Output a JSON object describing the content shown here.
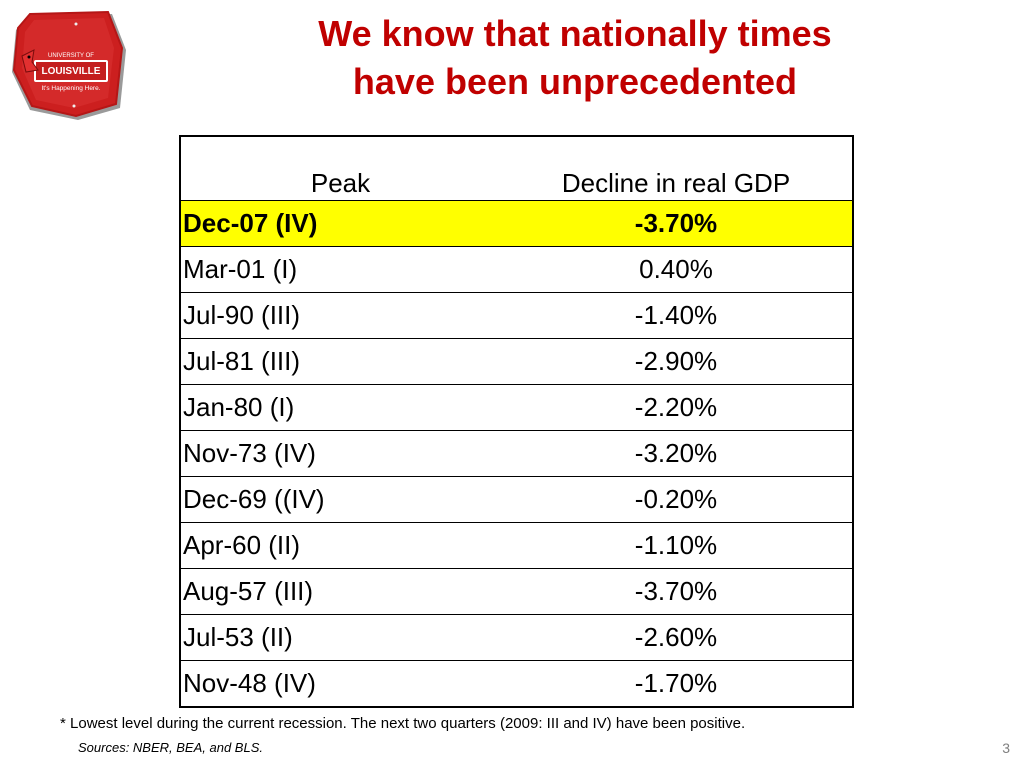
{
  "logo": {
    "line1": "UNIVERSITY OF",
    "line2": "LOUISVILLE",
    "line3": "It's Happening Here.",
    "sign_color": "#cc1f1f"
  },
  "title": {
    "line1": "We know that nationally times",
    "line2": "have been unprecedented",
    "color": "#c00000"
  },
  "table": {
    "headers": [
      "Peak",
      "Decline in real GDP"
    ],
    "highlight_color": "#ffff00",
    "rows": [
      {
        "peak": "Dec-07 (IV)",
        "decline": "-3.70%",
        "highlight": true
      },
      {
        "peak": "Mar-01 (I)",
        "decline": "0.40%"
      },
      {
        "peak": "Jul-90 (III)",
        "decline": "-1.40%"
      },
      {
        "peak": "Jul-81 (III)",
        "decline": "-2.90%"
      },
      {
        "peak": "Jan-80 (I)",
        "decline": "-2.20%"
      },
      {
        "peak": "Nov-73 (IV)",
        "decline": "-3.20%"
      },
      {
        "peak": "Dec-69 ((IV)",
        "decline": "-0.20%"
      },
      {
        "peak": "Apr-60 (II)",
        "decline": "-1.10%"
      },
      {
        "peak": "Aug-57 (III)",
        "decline": "-3.70%"
      },
      {
        "peak": "Jul-53 (II)",
        "decline": "-2.60%"
      },
      {
        "peak": "Nov-48 (IV)",
        "decline": "-1.70%"
      }
    ]
  },
  "footnote": "* Lowest level during the current recession.  The next two quarters (2009:  III and IV) have been positive.",
  "sources": "Sources: NBER, BEA, and BLS.",
  "page_number": "3"
}
